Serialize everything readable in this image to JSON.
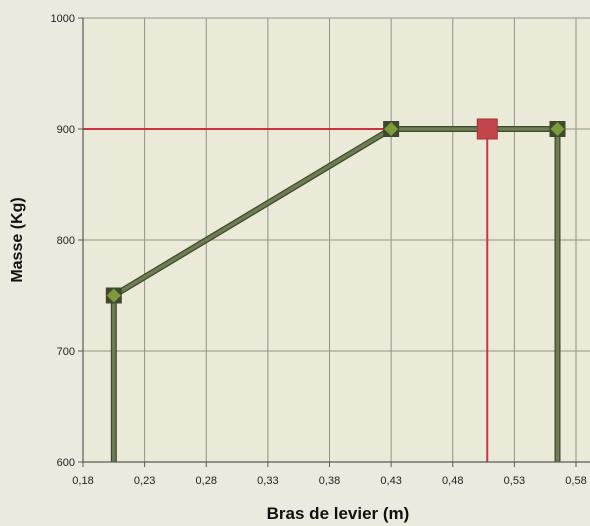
{
  "chart_data": {
    "type": "line",
    "xlabel": "Bras de levier (m)",
    "ylabel": "Masse (Kg)",
    "xlim": [
      0.18,
      0.58
    ],
    "ylim": [
      600,
      1000
    ],
    "x_ticks": [
      "0,18",
      "0,23",
      "0,28",
      "0,33",
      "0,38",
      "0,43",
      "0,48",
      "0,53",
      "0,58"
    ],
    "y_ticks": [
      "600",
      "700",
      "800",
      "900",
      "1000"
    ],
    "grid": true,
    "series": [
      {
        "color": "#6e7d4f",
        "marker_color": "#7f9a3a",
        "points": [
          {
            "x": 0.205,
            "y": 600
          },
          {
            "x": 0.205,
            "y": 750
          },
          {
            "x": 0.43,
            "y": 900
          },
          {
            "x": 0.565,
            "y": 900
          },
          {
            "x": 0.565,
            "y": 600
          }
        ],
        "marker_indices": [
          1,
          2,
          3
        ]
      }
    ],
    "reference_point": {
      "x": 0.508,
      "y": 900,
      "color": "#c2454c"
    },
    "reference_lines": {
      "horizontal_y": 900,
      "vertical_x": 0.508,
      "color": "#cc3340"
    }
  }
}
